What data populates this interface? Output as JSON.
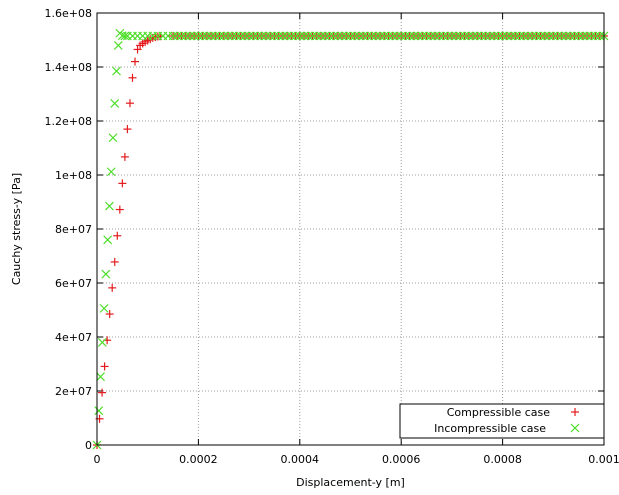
{
  "chart_data": {
    "type": "scatter",
    "title": "",
    "xlabel": "Displacement-y [m]",
    "ylabel": "Cauchy stress-y [Pa]",
    "xlim": [
      0,
      0.001
    ],
    "ylim": [
      0,
      160000000
    ],
    "x_ticks": [
      0,
      0.0002,
      0.0004,
      0.0006,
      0.0008,
      0.001
    ],
    "x_tick_labels": [
      "0",
      "0.0002",
      "0.0004",
      "0.0006",
      "0.0008",
      "0.001"
    ],
    "y_ticks": [
      0,
      20000000,
      40000000,
      60000000,
      80000000,
      100000000,
      120000000,
      140000000,
      160000000
    ],
    "y_tick_labels": [
      "0",
      "2e+07",
      "4e+07",
      "6e+07",
      "8e+07",
      "1e+08",
      "1.2e+08",
      "1.4e+08",
      "1.6e+08"
    ],
    "grid": true,
    "legend_position": "bottom-right",
    "series": [
      {
        "name": "Compressible case",
        "marker": "plus",
        "color": "#e41a1c",
        "points": [
          [
            0.0,
            0
          ],
          [
            5e-06,
            9700000
          ],
          [
            1e-05,
            19400000
          ],
          [
            1.5e-05,
            29100000
          ],
          [
            2e-05,
            38800000
          ],
          [
            2.5e-05,
            48500000
          ],
          [
            3e-05,
            58200000
          ],
          [
            3.5e-05,
            67800000
          ],
          [
            4e-05,
            77500000
          ],
          [
            4.5e-05,
            87200000
          ],
          [
            5e-05,
            96900000
          ],
          [
            5.5e-05,
            106700000
          ],
          [
            6e-05,
            117000000
          ],
          [
            6.5e-05,
            126600000
          ],
          [
            7e-05,
            136000000
          ],
          [
            7.5e-05,
            142000000
          ],
          [
            8e-05,
            146500000
          ],
          [
            8.5e-05,
            148000000
          ],
          [
            9e-05,
            148700000
          ],
          [
            9.5e-05,
            149300000
          ],
          [
            0.0001,
            149800000
          ],
          [
            0.000105,
            150300000
          ],
          [
            0.00011,
            150800000
          ],
          [
            0.000115,
            151100000
          ],
          [
            0.00012,
            151300000
          ],
          [
            0.000125,
            151400000
          ],
          [
            0.00015,
            151500000
          ],
          [
            0.0002,
            151500000
          ],
          [
            0.00025,
            151500000
          ],
          [
            0.0003,
            151500000
          ],
          [
            0.00035,
            151500000
          ],
          [
            0.0004,
            151500000
          ],
          [
            0.00045,
            151500000
          ],
          [
            0.0005,
            151500000
          ],
          [
            0.00055,
            151500000
          ],
          [
            0.0006,
            151500000
          ],
          [
            0.00065,
            151500000
          ],
          [
            0.0007,
            151500000
          ],
          [
            0.00075,
            151500000
          ],
          [
            0.0008,
            151500000
          ],
          [
            0.00085,
            151500000
          ],
          [
            0.0009,
            151500000
          ],
          [
            0.00095,
            151500000
          ],
          [
            0.001,
            151500000
          ]
        ]
      },
      {
        "name": "Incompressible case",
        "marker": "cross",
        "color": "#4dde2a",
        "points": [
          [
            0.0,
            0
          ],
          [
            3.5e-06,
            12700000
          ],
          [
            7e-06,
            25300000
          ],
          [
            1.05e-05,
            38000000
          ],
          [
            1.4e-05,
            50600000
          ],
          [
            1.75e-05,
            63300000
          ],
          [
            2.1e-05,
            76000000
          ],
          [
            2.45e-05,
            88500000
          ],
          [
            2.8e-05,
            101200000
          ],
          [
            3.15e-05,
            113800000
          ],
          [
            3.5e-05,
            126500000
          ],
          [
            3.85e-05,
            138500000
          ],
          [
            4.2e-05,
            148000000
          ],
          [
            4.5e-05,
            152500000
          ],
          [
            5e-05,
            151600000
          ],
          [
            5.5e-05,
            151500000
          ],
          [
            6e-05,
            151500000
          ],
          [
            7e-05,
            151500000
          ],
          [
            8e-05,
            151500000
          ],
          [
            9e-05,
            151500000
          ],
          [
            0.0001,
            151500000
          ],
          [
            0.00012,
            151500000
          ],
          [
            0.00015,
            151500000
          ],
          [
            0.0002,
            151500000
          ],
          [
            0.00025,
            151500000
          ],
          [
            0.0003,
            151500000
          ],
          [
            0.00035,
            151500000
          ],
          [
            0.0004,
            151500000
          ],
          [
            0.00045,
            151500000
          ],
          [
            0.0005,
            151500000
          ],
          [
            0.00055,
            151500000
          ],
          [
            0.0006,
            151500000
          ],
          [
            0.00065,
            151500000
          ],
          [
            0.0007,
            151500000
          ],
          [
            0.00075,
            151500000
          ],
          [
            0.0008,
            151500000
          ],
          [
            0.00085,
            151500000
          ],
          [
            0.0009,
            151500000
          ],
          [
            0.00095,
            151500000
          ],
          [
            0.001,
            151500000
          ]
        ]
      }
    ]
  }
}
